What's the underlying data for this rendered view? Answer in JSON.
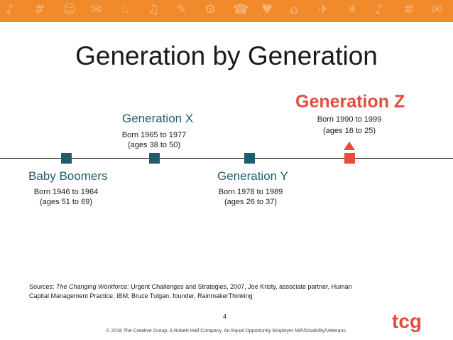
{
  "title": "Generation by Generation",
  "banner": {
    "icons": [
      "♪",
      "#",
      "☺",
      "✉",
      "☆",
      "♫",
      "✎",
      "⚙",
      "☎",
      "♥",
      "⌂",
      "✈",
      "☀",
      "♪",
      "#",
      "✉"
    ]
  },
  "generations": {
    "baby_boomers": {
      "name": "Baby Boomers",
      "born": "Born 1946 to 1964",
      "ages": "(ages 51 to 69)"
    },
    "gen_x": {
      "name": "Generation X",
      "born": "Born 1965 to 1977",
      "ages": "(ages 38 to 50)"
    },
    "gen_y": {
      "name": "Generation Y",
      "born": "Born 1978 to 1989",
      "ages": "(ages 26 to 37)"
    },
    "gen_z": {
      "name": "Generation Z",
      "born": "Born 1990 to 1999",
      "ages": "(ages 16 to 25)"
    }
  },
  "sources": {
    "prefix": "Sources: ",
    "book": "The Changing Workforce:",
    "rest": " Urgent Challenges and Strategies, 2007, Joe Kristy, associate partner, Human Capital Management Practice, IBM; Bruce Tulgan, founder, RainmakerThinking"
  },
  "page_number": "4",
  "footer": "© 2016 The Creative Group. A Robert Half Company. An Equal Opportunity Employer M/F/Disability/Veterans.",
  "logo_text": "tcg",
  "colors": {
    "banner": "#f08a2a",
    "teal": "#1f5d6e",
    "accent_red": "#e84c3d"
  }
}
